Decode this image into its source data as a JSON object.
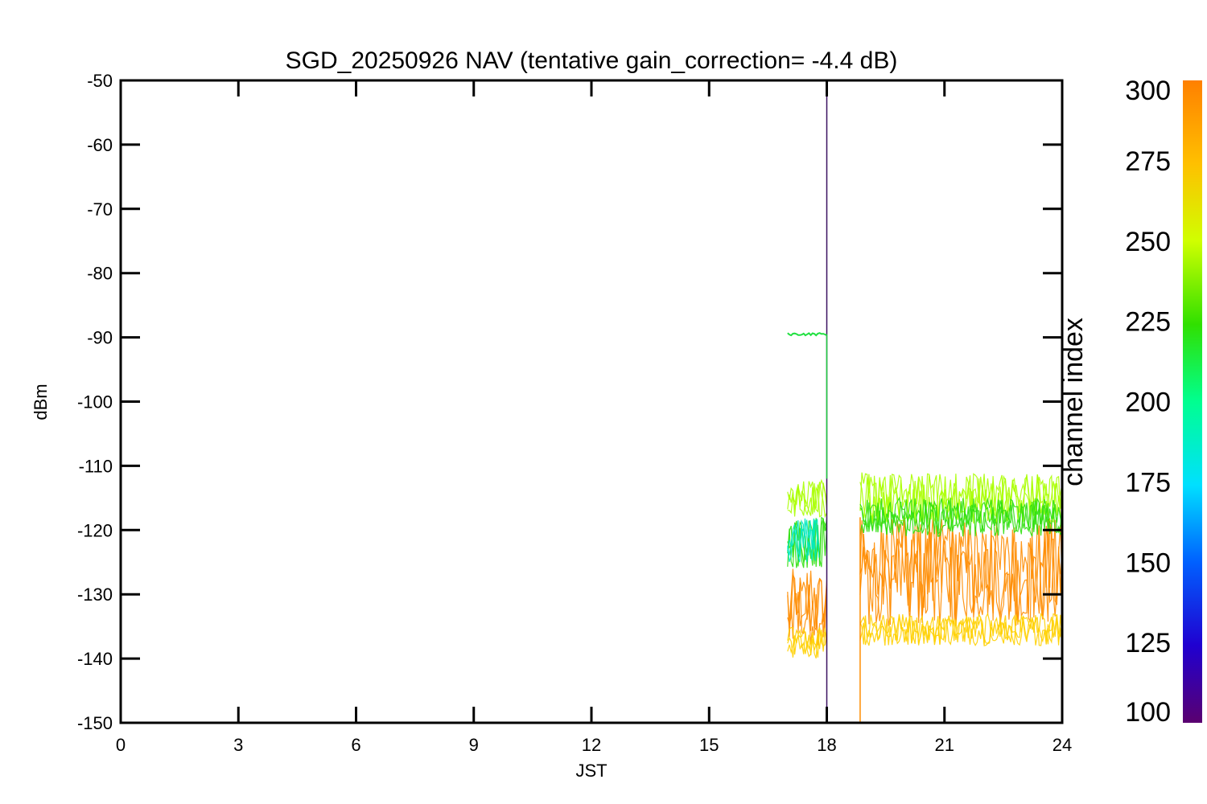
{
  "chart_data": {
    "type": "line",
    "title": "SGD_20250926 NAV (tentative gain_correction= -4.4 dB)",
    "xlabel": "JST",
    "ylabel": "dBm",
    "xlim": [
      0,
      24
    ],
    "ylim": [
      -150,
      -50
    ],
    "x_ticks": [
      0,
      3,
      6,
      9,
      12,
      15,
      18,
      21,
      24
    ],
    "y_ticks": [
      -50,
      -60,
      -70,
      -80,
      -90,
      -100,
      -110,
      -120,
      -130,
      -140,
      -150
    ],
    "grid": false,
    "colorbar": {
      "title": "channel index",
      "range": [
        100,
        300
      ],
      "ticks": [
        300,
        275,
        250,
        225,
        200,
        175,
        150,
        125,
        100
      ],
      "colormap": "rainbow",
      "colors": [
        "#5a0070",
        "#2000d0",
        "#0060ff",
        "#00e0ff",
        "#00ff90",
        "#30e000",
        "#d0ff00",
        "#ffc000",
        "#ff8000"
      ]
    },
    "series": [
      {
        "channel": 290,
        "color": "#ff8c00",
        "segments": [
          {
            "x_start": 17.0,
            "x_end": 18.0,
            "y_low": -138,
            "y_high": -126
          },
          {
            "x_start": 18.85,
            "x_end": 24.0,
            "y_low": -135,
            "y_high": -118
          }
        ]
      },
      {
        "channel": 275,
        "color": "#ffd000",
        "segments": [
          {
            "x_start": 17.0,
            "x_end": 18.0,
            "y_low": -140,
            "y_high": -135
          },
          {
            "x_start": 18.85,
            "x_end": 24.0,
            "y_low": -138,
            "y_high": -133
          }
        ]
      },
      {
        "channel": 255,
        "color": "#aaff00",
        "segments": [
          {
            "x_start": 17.0,
            "x_end": 18.0,
            "y_low": -118,
            "y_high": -112
          },
          {
            "x_start": 18.85,
            "x_end": 24.0,
            "y_low": -119,
            "y_high": -111
          }
        ]
      },
      {
        "channel": 240,
        "color": "#30e010",
        "segments": [
          {
            "x_start": 17.0,
            "x_end": 18.0,
            "y_low": -126,
            "y_high": -118
          },
          {
            "x_start": 18.85,
            "x_end": 24.0,
            "y_low": -121,
            "y_high": -115
          }
        ]
      },
      {
        "channel": 190,
        "color": "#00e8c0",
        "segments": [
          {
            "x_start": 17.0,
            "x_end": 17.8,
            "y_low": -125,
            "y_high": -118
          }
        ]
      },
      {
        "channel": 230,
        "color": "#20e040",
        "segments": [
          {
            "x_start": 17.0,
            "x_end": 18.0,
            "y_low": -89.7,
            "y_high": -89.3
          }
        ]
      }
    ],
    "spikes": [
      {
        "x": 18.0,
        "y_from": -150,
        "y_to": -50,
        "color": "#3a1060"
      },
      {
        "x": 18.0,
        "y_from": -112,
        "y_to": -89.5,
        "color": "#20d040"
      },
      {
        "x": 18.85,
        "y_from": -150,
        "y_to": -118,
        "color": "#ff8c00"
      }
    ]
  }
}
